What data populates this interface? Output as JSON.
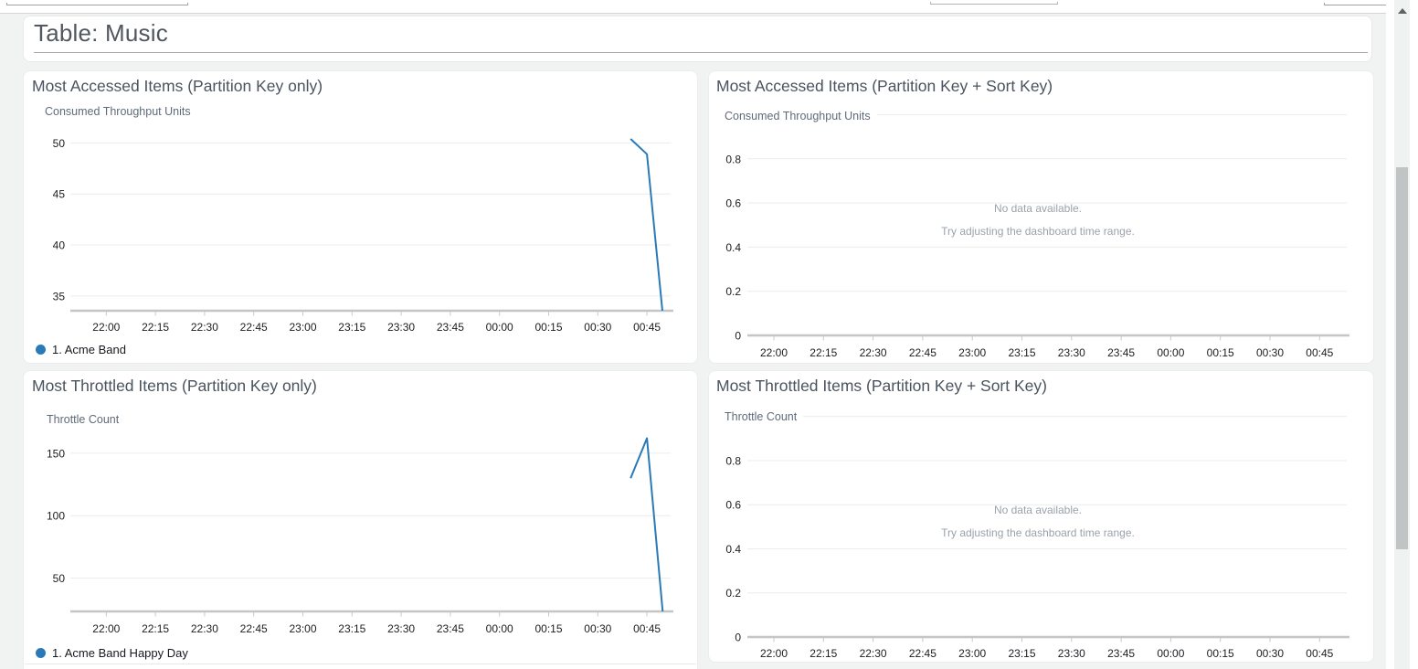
{
  "page": {
    "title": "Table: Music"
  },
  "no_data_message": {
    "line1": "No data available.",
    "line2": "Try adjusting the dashboard time range."
  },
  "chart_data": [
    {
      "id": "most-accessed-pk",
      "type": "line",
      "title": "Most Accessed Items (Partition Key only)",
      "unit_label": "Consumed Throughput Units",
      "x_tick_labels": [
        "22:00",
        "22:15",
        "22:30",
        "22:45",
        "23:00",
        "23:15",
        "23:30",
        "23:45",
        "00:00",
        "00:15",
        "00:30",
        "00:45"
      ],
      "minutes_per_x_interval": 15,
      "y_ticks": [
        {
          "v": 50,
          "label": "50"
        },
        {
          "v": 45,
          "label": "45"
        },
        {
          "v": 40,
          "label": "40"
        },
        {
          "v": 35,
          "label": "35"
        }
      ],
      "y_axis_min": 33.55,
      "grid": true,
      "legend_position": "bottom-left",
      "series": [
        {
          "name": "1. Acme Band",
          "color": "#2b7ab8",
          "points": [
            {
              "t_minutes": 160,
              "value": 50.4
            },
            {
              "t_minutes": 165,
              "value": 48.9
            },
            {
              "t_minutes": 169.7,
              "value": 33.55
            }
          ]
        }
      ]
    },
    {
      "id": "most-accessed-pk-sk",
      "type": "line",
      "title": "Most Accessed Items (Partition Key + Sort Key)",
      "unit_label": "Consumed Throughput Units",
      "x_tick_labels": [
        "22:00",
        "22:15",
        "22:30",
        "22:45",
        "23:00",
        "23:15",
        "23:30",
        "23:45",
        "00:00",
        "00:15",
        "00:30",
        "00:45"
      ],
      "minutes_per_x_interval": 15,
      "y_ticks": [
        {
          "v": 1,
          "label": ""
        },
        {
          "v": 0.8,
          "label": "0.8"
        },
        {
          "v": 0.6,
          "label": "0.6"
        },
        {
          "v": 0.4,
          "label": "0.4"
        },
        {
          "v": 0.2,
          "label": "0.2"
        },
        {
          "v": 0,
          "label": "0"
        }
      ],
      "y_axis_min": 0,
      "grid": true,
      "series": [],
      "no_data": {
        "line1": "No data available.",
        "line2": "Try adjusting the dashboard time range."
      }
    },
    {
      "id": "most-throttled-pk",
      "type": "line",
      "title": "Most Throttled Items (Partition Key only)",
      "unit_label": "Throttle Count",
      "x_tick_labels": [
        "22:00",
        "22:15",
        "22:30",
        "22:45",
        "23:00",
        "23:15",
        "23:30",
        "23:45",
        "00:00",
        "00:15",
        "00:30",
        "00:45"
      ],
      "minutes_per_x_interval": 15,
      "y_ticks": [
        {
          "v": 150,
          "label": "150"
        },
        {
          "v": 100,
          "label": "100"
        },
        {
          "v": 50,
          "label": "50"
        }
      ],
      "y_axis_min": 23.3,
      "grid": true,
      "legend_position": "bottom-left",
      "series": [
        {
          "name": "1. Acme Band Happy Day",
          "color": "#2b7ab8",
          "points": [
            {
              "t_minutes": 160,
              "value": 130
            },
            {
              "t_minutes": 165,
              "value": 162
            },
            {
              "t_minutes": 169.8,
              "value": 23.3
            }
          ]
        }
      ]
    },
    {
      "id": "most-throttled-pk-sk",
      "type": "line",
      "title": "Most Throttled Items (Partition Key + Sort Key)",
      "unit_label": "Throttle Count",
      "x_tick_labels": [
        "22:00",
        "22:15",
        "22:30",
        "22:45",
        "23:00",
        "23:15",
        "23:30",
        "23:45",
        "00:00",
        "00:15",
        "00:30",
        "00:45"
      ],
      "minutes_per_x_interval": 15,
      "y_ticks": [
        {
          "v": 1,
          "label": ""
        },
        {
          "v": 0.8,
          "label": "0.8"
        },
        {
          "v": 0.6,
          "label": "0.6"
        },
        {
          "v": 0.4,
          "label": "0.4"
        },
        {
          "v": 0.2,
          "label": "0.2"
        },
        {
          "v": 0,
          "label": "0"
        }
      ],
      "y_axis_min": 0,
      "grid": true,
      "series": [],
      "no_data": {
        "line1": "No data available.",
        "line2": "Try adjusting the dashboard time range."
      }
    }
  ]
}
